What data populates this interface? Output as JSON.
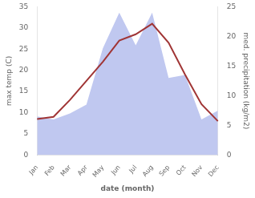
{
  "chart_data": {
    "type": "line",
    "categories": [
      "Jan",
      "Feb",
      "Mar",
      "Apr",
      "May",
      "Jun",
      "Jul",
      "Aug",
      "Sep",
      "Oct",
      "Nov",
      "Dec"
    ],
    "xlabel": "date (month)",
    "ylabel": "max temp (C)",
    "y2label": "med. precipitation (kg/m2)",
    "series": [
      {
        "type": "area",
        "axis": "y2",
        "color": "#c0c8f0",
        "values": [
          6.5,
          6.0,
          7.0,
          8.5,
          18.0,
          24.0,
          18.5,
          24.0,
          13.0,
          13.5,
          6.0,
          7.5
        ]
      },
      {
        "type": "line",
        "color": "#a03535",
        "values": [
          8.5,
          9.0,
          13.0,
          17.5,
          22.0,
          27.0,
          28.5,
          31.0,
          26.5,
          19.0,
          12.0,
          8.0
        ]
      }
    ],
    "ylim": [
      0,
      35
    ],
    "yticks": [
      0,
      5,
      10,
      15,
      20,
      25,
      30,
      35
    ],
    "y2lim": [
      0,
      25
    ],
    "y2ticks": [
      0,
      5,
      10,
      15,
      20,
      25
    ],
    "grid": false
  }
}
